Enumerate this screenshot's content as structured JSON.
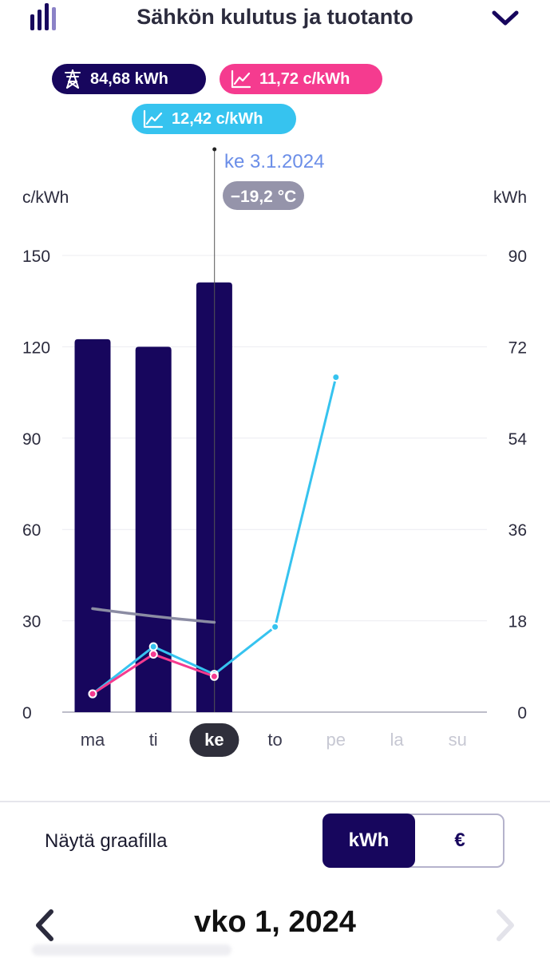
{
  "header": {
    "title": "Sähkön kulutus ja tuotanto",
    "chart_icon": "bar-chart-icon",
    "expand_icon": "chevron-down-icon"
  },
  "pills": {
    "consumption": {
      "label": "84,68 kWh",
      "icon": "power-tower-icon",
      "color": "#17065d"
    },
    "price_pink": {
      "label": "11,72 c/kWh",
      "icon": "line-chart-icon",
      "color": "#f53b8f"
    },
    "price_cyan": {
      "label": "12,42 c/kWh",
      "icon": "line-chart-icon",
      "color": "#36c3ef"
    }
  },
  "chart_data": {
    "type": "bar",
    "categories": [
      "ma",
      "ti",
      "ke",
      "to",
      "pe",
      "la",
      "su"
    ],
    "selected_category": "ke",
    "selected_date": "ke 3.1.2024",
    "selected_temperature": "−19,2 °C",
    "left_axis": {
      "label": "c/kWh",
      "ticks": [
        0,
        30,
        60,
        90,
        120,
        150
      ],
      "range": [
        0,
        150
      ]
    },
    "right_axis": {
      "label": "kWh",
      "ticks": [
        0,
        18,
        36,
        54,
        72,
        90
      ],
      "range": [
        0,
        90
      ]
    },
    "grid": true,
    "series": [
      {
        "kind": "bar",
        "axis": "right",
        "color": "#17065d",
        "values": [
          73.5,
          72.0,
          84.68,
          null,
          null,
          null,
          null
        ]
      },
      {
        "kind": "line",
        "axis": "left",
        "color": "#8b8ca3",
        "values": [
          34.0,
          31.0,
          29.5,
          null,
          null,
          null,
          null
        ]
      },
      {
        "kind": "line",
        "axis": "left",
        "color": "#36c3ef",
        "values": [
          6.0,
          21.5,
          12.42,
          28.0,
          110.0,
          null,
          null
        ]
      },
      {
        "kind": "line",
        "axis": "left",
        "color": "#f53b8f",
        "values": [
          6.0,
          19.0,
          11.72,
          null,
          null,
          null,
          null
        ]
      }
    ]
  },
  "controls": {
    "show_label": "Näytä graafilla",
    "kwh_label": "kWh",
    "eur_label": "€",
    "active": "kWh"
  },
  "nav": {
    "week_label": "vko 1, 2024",
    "prev_icon": "chevron-left-icon",
    "next_icon": "chevron-right-icon"
  }
}
